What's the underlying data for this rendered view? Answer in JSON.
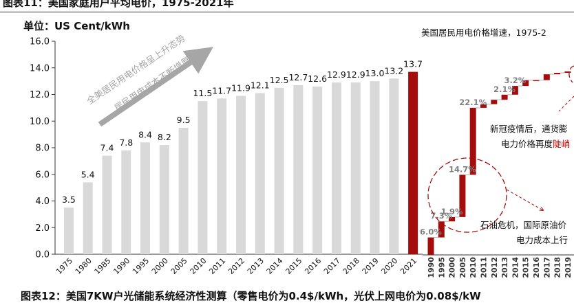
{
  "figure_top": {
    "title": "图表11：美国家庭用户平均电价，1975-2021年"
  },
  "unit_label": "单位：US Cent/kWh",
  "figure_bottom": {
    "title": "图表12：美国7KW户光储能系统经济性测算（零售电价为0.4$/kWh，光伏上网电价为0.08$/kW"
  },
  "chart_data": [
    {
      "type": "bar",
      "title": "",
      "ylabel": "单位：US Cent/kWh",
      "ylim": [
        0,
        16
      ],
      "yticks": [
        "0.0",
        "2.0",
        "4.0",
        "6.0",
        "8.0",
        "10.0",
        "12.0",
        "14.0",
        "16.0"
      ],
      "grid": false,
      "categories": [
        "1975",
        "1980",
        "1985",
        "1990",
        "1995",
        "2000",
        "2005",
        "2010",
        "2011",
        "2012",
        "2013",
        "2014",
        "2015",
        "2016",
        "2017",
        "2018",
        "2019",
        "2020",
        "2021"
      ],
      "values": [
        3.5,
        5.4,
        7.4,
        7.8,
        8.4,
        8.2,
        9.5,
        11.5,
        11.7,
        11.9,
        12.1,
        12.5,
        12.7,
        12.6,
        12.9,
        12.9,
        13.0,
        13.2,
        13.7
      ],
      "value_labels": [
        "3.5",
        "5.4",
        "7.4",
        "7.8",
        "8.4",
        "8.2",
        "9.5",
        "11.5",
        "11.7",
        "11.9",
        "12.1",
        "12.5",
        "12.7",
        "12.6",
        "12.9",
        "12.9",
        "13.0",
        "13.2",
        "13.7"
      ],
      "bar_color": "#d9d9d9",
      "highlight_color": "#a50d0d",
      "highlight_category": "2021",
      "annotation": {
        "line1": "全美居民用电价格呈上升态势",
        "line2": "居民用电成本不断增厚"
      },
      "annotation_color": "#a6a6a6"
    },
    {
      "type": "waterfall",
      "title": "美国居民用电价格增速，1975-2",
      "categories": [
        "1990",
        "1995",
        "2000",
        "2005",
        "2010",
        "2011",
        "2012",
        "2013",
        "2014",
        "2015",
        "2016",
        "2017",
        "2018",
        "2019"
      ],
      "bars": [
        {
          "from": 0,
          "to": 1.2
        },
        {
          "from": 1.2,
          "to": 2.3
        },
        {
          "from": 2.3,
          "to": 2.6
        },
        {
          "from": 2.6,
          "to": 5.5
        },
        {
          "from": 5.5,
          "to": 10.1
        },
        {
          "from": 10.1,
          "to": 10.35
        },
        {
          "from": 10.35,
          "to": 10.65
        },
        {
          "from": 10.65,
          "to": 11.0
        },
        {
          "from": 11.0,
          "to": 11.6
        },
        {
          "from": 11.6,
          "to": 12.0
        },
        {
          "from": 12.0,
          "to": 12.0
        },
        {
          "from": 12.0,
          "to": 12.4
        },
        {
          "from": 12.4,
          "to": 12.5
        },
        {
          "from": 12.5,
          "to": 12.6
        }
      ],
      "rate_labels": [
        {
          "text": "6.0%",
          "index": 0
        },
        {
          "text": "7.3%",
          "index": 1
        },
        {
          "text": "1.9%",
          "index": 2
        },
        {
          "text": "14.7%",
          "index": 3
        },
        {
          "text": "22.1%",
          "index": 4
        },
        {
          "text": "2.1%",
          "index": 7
        },
        {
          "text": "3.2%",
          "index": 8
        }
      ],
      "callouts": {
        "oil_crisis_line1": "石油危机，国际原油价",
        "oil_crisis_line2": "电力成本上行",
        "covid_line1": "新冠疫情后，通货膨",
        "covid_line2_prefix": "电力价格再度",
        "covid_line2_highlight": "陡峭"
      },
      "bar_color": "#a50d0d",
      "label_color": "#7f7f7f"
    }
  ]
}
